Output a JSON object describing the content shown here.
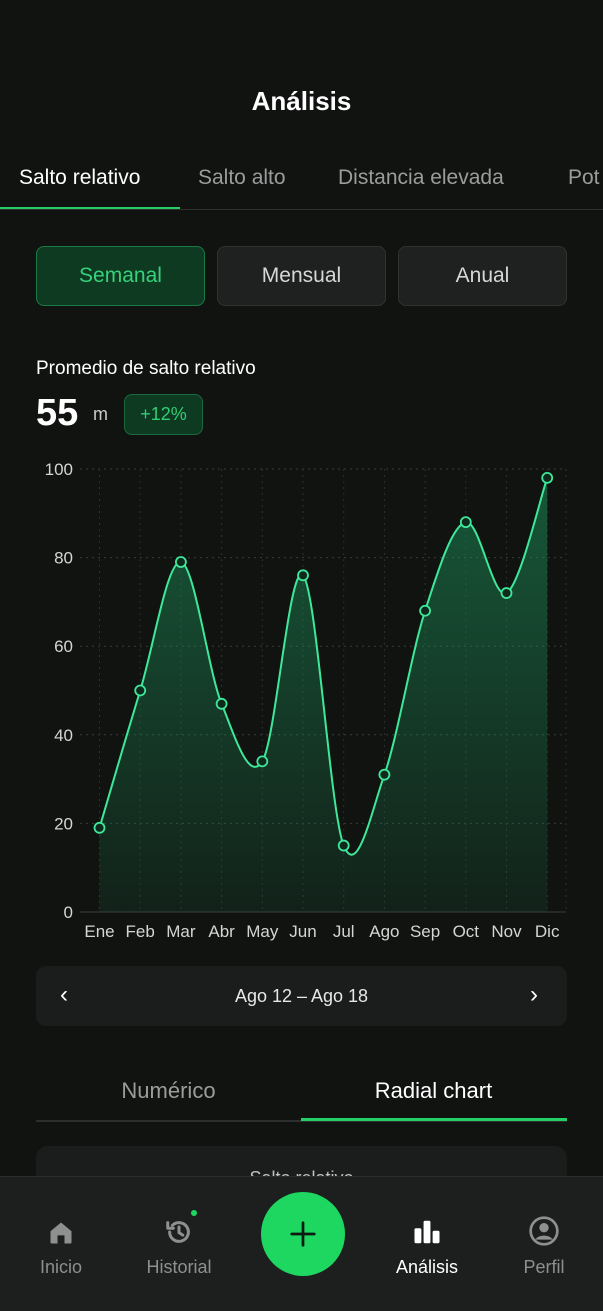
{
  "header": {
    "title": "Análisis"
  },
  "tabs": [
    {
      "label": "Salto relativo",
      "active": true
    },
    {
      "label": "Salto alto",
      "active": false
    },
    {
      "label": "Distancia elevada",
      "active": false
    },
    {
      "label": "Pot",
      "active": false
    }
  ],
  "periods": [
    {
      "label": "Semanal",
      "active": true
    },
    {
      "label": "Mensual",
      "active": false
    },
    {
      "label": "Anual",
      "active": false
    }
  ],
  "stat": {
    "label": "Promedio de salto relativo",
    "value": "55",
    "unit": "m",
    "change": "+12%"
  },
  "chart_data": {
    "type": "area",
    "categories": [
      "Ene",
      "Feb",
      "Mar",
      "Abr",
      "May",
      "Jun",
      "Jul",
      "Ago",
      "Sep",
      "Oct",
      "Nov",
      "Dic"
    ],
    "values": [
      19,
      50,
      79,
      47,
      34,
      76,
      15,
      31,
      68,
      88,
      72,
      98
    ],
    "ylim": [
      0,
      100
    ],
    "yticks": [
      0,
      20,
      40,
      60,
      80,
      100
    ],
    "grid": true,
    "line_color": "#3ee89a",
    "fill_color": "#1c8f58"
  },
  "range_nav": {
    "label": "Ago 12 – Ago 18",
    "prev": "‹",
    "next": "›"
  },
  "subtabs": [
    {
      "label": "Numérico",
      "active": false
    },
    {
      "label": "Radial chart",
      "active": true
    }
  ],
  "card": {
    "title": "Salto relativo"
  },
  "bottom_nav": [
    {
      "label": "Inicio",
      "icon": "home-icon",
      "active": false
    },
    {
      "label": "Historial",
      "icon": "history-icon",
      "active": false,
      "dot": true
    },
    {
      "label": "Análisis",
      "icon": "bar-chart-icon",
      "active": true
    },
    {
      "label": "Perfil",
      "icon": "user-icon",
      "active": false
    }
  ],
  "fab": {
    "icon": "plus-icon"
  },
  "colors": {
    "accent": "#1ed760",
    "background": "#111311"
  }
}
